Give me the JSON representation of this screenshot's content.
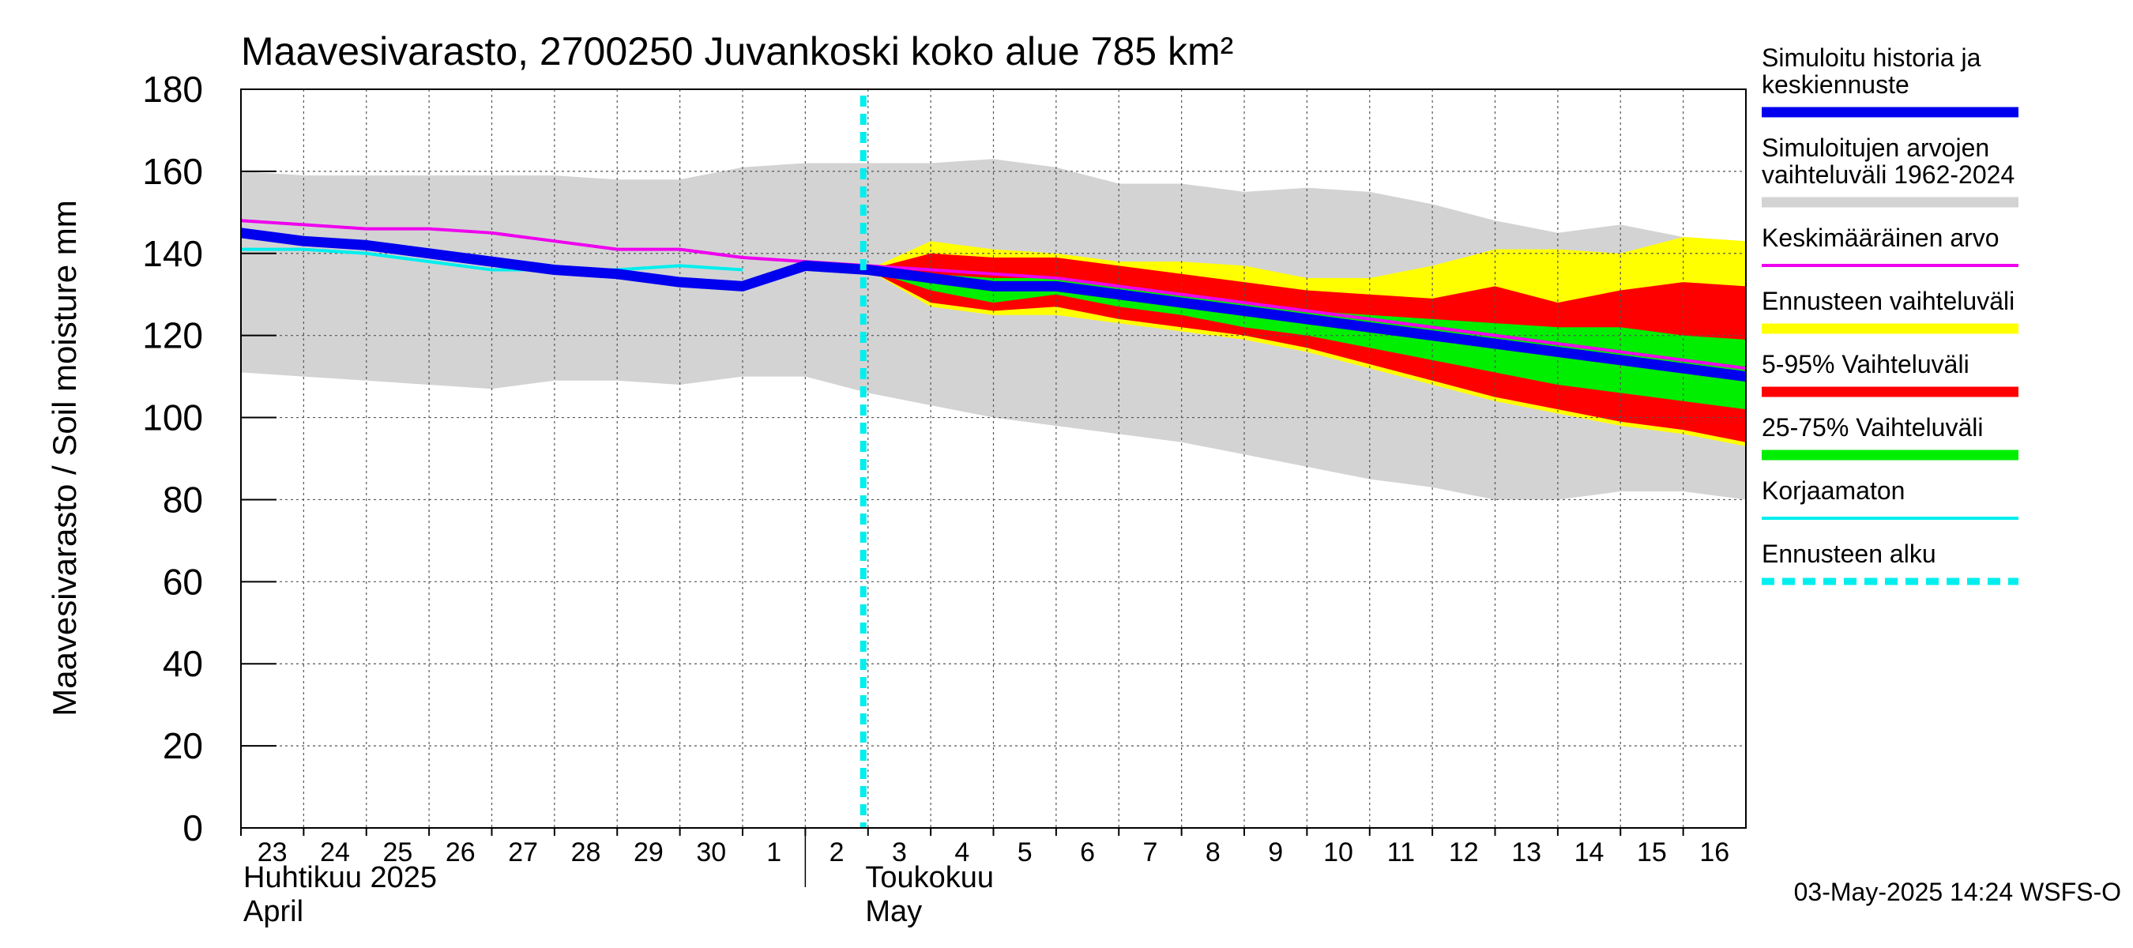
{
  "chart_data": {
    "type": "area",
    "title": "Maavesivarasto, 2700250 Juvankoski koko alue 785 km²",
    "ylabel": "Maavesivarasto / Soil moisture   mm",
    "ylim": [
      0,
      180
    ],
    "yticks": [
      0,
      20,
      40,
      60,
      80,
      100,
      120,
      140,
      160,
      180
    ],
    "xlim": [
      0,
      24
    ],
    "x_day_labels": [
      "23",
      "24",
      "25",
      "26",
      "27",
      "28",
      "29",
      "30",
      "1",
      "2",
      "3",
      "4",
      "5",
      "6",
      "7",
      "8",
      "9",
      "10",
      "11",
      "12",
      "13",
      "14",
      "15",
      "16"
    ],
    "month_labels": [
      {
        "fi": "Huhtikuu  2025",
        "en": "April",
        "x": 0
      },
      {
        "fi": "Toukokuu",
        "en": "May",
        "x": 9
      }
    ],
    "forecast_start_x": 10,
    "grid": true,
    "timestamp": "03-May-2025 14:24 WSFS-O",
    "colors": {
      "history": "#0000ee",
      "range_hist": "#d3d3d3",
      "mean": "#ee00ee",
      "forecast_range": "#ffff00",
      "p5_95": "#ff0000",
      "p25_75": "#00ee00",
      "uncorrected": "#00eeee",
      "forecast_start": "#00eeee"
    },
    "series": {
      "range_hist_x": [
        0,
        1,
        2,
        3,
        4,
        5,
        6,
        7,
        8,
        9,
        10,
        11,
        12,
        13,
        14,
        15,
        16,
        17,
        18,
        19,
        20,
        21,
        22,
        23,
        24
      ],
      "range_hist_upper": [
        160,
        159,
        159,
        159,
        159,
        159,
        158,
        158,
        161,
        162,
        162,
        162,
        163,
        161,
        157,
        157,
        155,
        156,
        155,
        152,
        148,
        145,
        147,
        144,
        143
      ],
      "range_hist_lower": [
        111,
        110,
        109,
        108,
        107,
        109,
        109,
        108,
        110,
        110,
        106,
        103,
        100,
        98,
        96,
        94,
        91,
        88,
        85,
        83,
        80,
        80,
        82,
        82,
        80
      ],
      "forecast_x": [
        10,
        11,
        12,
        13,
        14,
        15,
        16,
        17,
        18,
        19,
        20,
        21,
        22,
        23,
        24
      ],
      "forecast_upper": [
        136,
        143,
        141,
        140,
        138,
        138,
        137,
        134,
        134,
        137,
        141,
        141,
        140,
        144,
        143
      ],
      "forecast_lower": [
        136,
        127,
        125,
        125,
        123,
        121,
        119,
        116,
        112,
        108,
        104,
        101,
        98,
        96,
        93
      ],
      "p95": [
        136,
        140,
        139,
        139,
        137,
        135,
        133,
        131,
        130,
        129,
        132,
        128,
        131,
        133,
        132
      ],
      "p5": [
        136,
        128,
        126,
        127,
        124,
        122,
        120,
        117,
        113,
        109,
        105,
        102,
        99,
        97,
        94
      ],
      "p75": [
        136,
        135,
        134,
        134,
        132,
        130,
        128,
        126,
        125,
        124,
        123,
        122,
        122,
        120,
        119
      ],
      "p25": [
        136,
        131,
        128,
        130,
        127,
        125,
        122,
        120,
        117,
        114,
        111,
        108,
        106,
        104,
        102
      ],
      "mean_x": [
        0,
        1,
        2,
        3,
        4,
        5,
        6,
        7,
        8,
        9,
        10,
        11,
        12,
        13,
        14,
        15,
        16,
        17,
        18,
        19,
        20,
        21,
        22,
        23,
        24
      ],
      "mean": [
        148,
        147,
        146,
        146,
        145,
        143,
        141,
        141,
        139,
        138,
        137,
        136,
        135,
        134,
        132,
        130,
        128,
        126,
        124,
        122,
        120,
        118,
        116,
        114,
        112
      ],
      "uncorrected_x": [
        0,
        1,
        2,
        3,
        4,
        5,
        6,
        7,
        8
      ],
      "uncorrected": [
        141,
        141,
        140,
        138,
        136,
        136,
        136,
        137,
        136
      ],
      "history_x": [
        0,
        1,
        2,
        3,
        4,
        5,
        6,
        7,
        8,
        9,
        10,
        11,
        12,
        13,
        14,
        15,
        16,
        17,
        18,
        19,
        20,
        21,
        22,
        23,
        24
      ],
      "history": [
        145,
        143,
        142,
        140,
        138,
        136,
        135,
        133,
        132,
        137,
        136,
        134,
        132,
        132,
        130,
        128,
        126,
        124,
        122,
        120,
        118,
        116,
        114,
        112,
        110
      ]
    },
    "legend": [
      {
        "label": "Simuloitu historia ja keskiennuste",
        "lines": [
          "Simuloitu historia ja",
          "keskiennuste"
        ],
        "color": "#0000ee",
        "style": "thick"
      },
      {
        "label": "Simuloitujen arvojen vaihteluväli 1962-2024",
        "lines": [
          "Simuloitujen arvojen",
          "vaihteluväli 1962-2024"
        ],
        "color": "#d3d3d3",
        "style": "thick"
      },
      {
        "label": "Keskimääräinen arvo",
        "lines": [
          "Keskimääräinen arvo"
        ],
        "color": "#ee00ee",
        "style": "thin"
      },
      {
        "label": "Ennusteen vaihteluväli",
        "lines": [
          "Ennusteen vaihteluväli"
        ],
        "color": "#ffff00",
        "style": "thick"
      },
      {
        "label": "5-95% Vaihteluväli",
        "lines": [
          "5-95% Vaihteluväli"
        ],
        "color": "#ff0000",
        "style": "thick"
      },
      {
        "label": "25-75% Vaihteluväli",
        "lines": [
          "25-75% Vaihteluväli"
        ],
        "color": "#00ee00",
        "style": "thick"
      },
      {
        "label": "Korjaamaton",
        "lines": [
          "Korjaamaton"
        ],
        "color": "#00eeee",
        "style": "thin"
      },
      {
        "label": "Ennusteen alku",
        "lines": [
          "Ennusteen alku"
        ],
        "color": "#00eeee",
        "style": "dashed"
      }
    ]
  }
}
